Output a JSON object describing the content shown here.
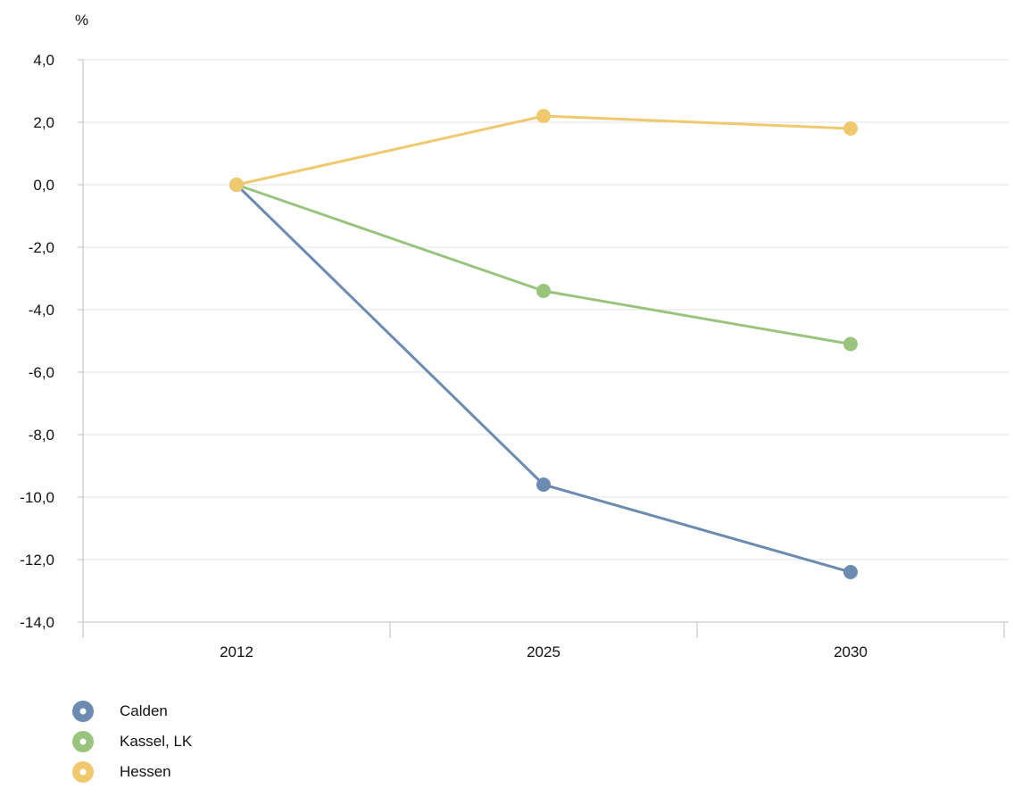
{
  "chart_data": {
    "type": "line",
    "title": "",
    "xlabel": "",
    "ylabel": "%",
    "categories": [
      "2012",
      "2025",
      "2030"
    ],
    "ylim": [
      -14,
      4
    ],
    "yticks": [
      4,
      2,
      0,
      -2,
      -4,
      -6,
      -8,
      -10,
      -12,
      -14
    ],
    "ytick_labels": [
      "4,0",
      "2,0",
      "0,0",
      "-2,0",
      "-4,0",
      "-6,0",
      "-8,0",
      "-10,0",
      "-12,0",
      "-14,0"
    ],
    "grid": true,
    "legend_position": "bottom-left",
    "series": [
      {
        "name": "Calden",
        "color": "#6b8bb0",
        "values": [
          0,
          -9.6,
          -12.4
        ]
      },
      {
        "name": "Kassel, LK",
        "color": "#98c47e",
        "values": [
          0,
          -3.4,
          -5.1
        ]
      },
      {
        "name": "Hessen",
        "color": "#f0c86e",
        "values": [
          0,
          2.2,
          1.8
        ]
      }
    ]
  }
}
